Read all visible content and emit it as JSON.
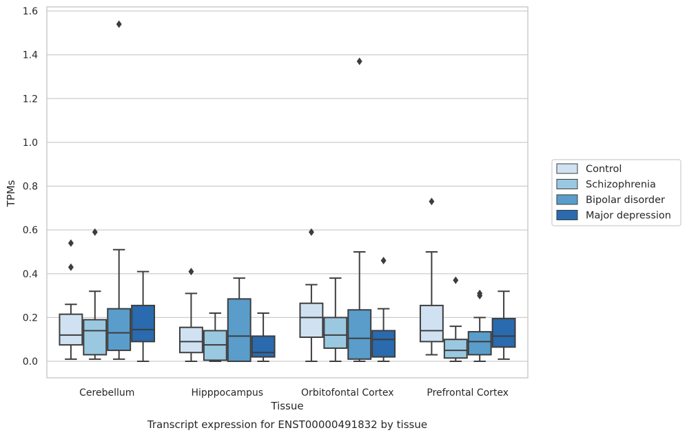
{
  "chart_data": {
    "type": "boxplot",
    "title": "Transcript expression for ENST00000491832 by tissue",
    "xlabel": "Tissue",
    "ylabel": "TPMs",
    "ylim": [
      -0.075,
      1.62
    ],
    "yticks": [
      0.0,
      0.2,
      0.4,
      0.6,
      0.8,
      1.0,
      1.2,
      1.4,
      1.6
    ],
    "ytick_labels": [
      "0.0",
      "0.2",
      "0.4",
      "0.6",
      "0.8",
      "1.0",
      "1.2",
      "1.4",
      "1.6"
    ],
    "grid": true,
    "legend_position": "right",
    "categories": [
      "Cerebellum",
      "Hipppocampus",
      "Orbitofontal Cortex",
      "Prefrontal Cortex"
    ],
    "series": [
      {
        "name": "Control",
        "color": "#d0e1f2",
        "boxes": [
          {
            "whislo": 0.01,
            "q1": 0.075,
            "med": 0.12,
            "q3": 0.215,
            "whishi": 0.26,
            "fliers": [
              0.43,
              0.54
            ]
          },
          {
            "whislo": 0.0,
            "q1": 0.04,
            "med": 0.09,
            "q3": 0.155,
            "whishi": 0.31,
            "fliers": [
              0.41
            ]
          },
          {
            "whislo": 0.0,
            "q1": 0.11,
            "med": 0.2,
            "q3": 0.265,
            "whishi": 0.35,
            "fliers": [
              0.59
            ]
          },
          {
            "whislo": 0.03,
            "q1": 0.09,
            "med": 0.14,
            "q3": 0.255,
            "whishi": 0.5,
            "fliers": [
              0.73
            ]
          }
        ]
      },
      {
        "name": "Schizophrenia",
        "color": "#9ac8e0",
        "boxes": [
          {
            "whislo": 0.01,
            "q1": 0.03,
            "med": 0.14,
            "q3": 0.19,
            "whishi": 0.32,
            "fliers": [
              0.59
            ]
          },
          {
            "whislo": 0.0,
            "q1": 0.005,
            "med": 0.075,
            "q3": 0.14,
            "whishi": 0.22,
            "fliers": []
          },
          {
            "whislo": 0.0,
            "q1": 0.06,
            "med": 0.12,
            "q3": 0.2,
            "whishi": 0.38,
            "fliers": []
          },
          {
            "whislo": 0.0,
            "q1": 0.015,
            "med": 0.05,
            "q3": 0.1,
            "whishi": 0.16,
            "fliers": [
              0.37
            ]
          }
        ]
      },
      {
        "name": "Bipolar disorder",
        "color": "#5a9dcb",
        "boxes": [
          {
            "whislo": 0.01,
            "q1": 0.05,
            "med": 0.13,
            "q3": 0.24,
            "whishi": 0.51,
            "fliers": [
              1.54
            ]
          },
          {
            "whislo": 0.0,
            "q1": 0.0,
            "med": 0.115,
            "q3": 0.285,
            "whishi": 0.38,
            "fliers": []
          },
          {
            "whislo": 0.0,
            "q1": 0.01,
            "med": 0.105,
            "q3": 0.235,
            "whishi": 0.5,
            "fliers": [
              1.37
            ]
          },
          {
            "whislo": 0.0,
            "q1": 0.03,
            "med": 0.09,
            "q3": 0.135,
            "whishi": 0.2,
            "fliers": [
              0.3,
              0.31
            ]
          }
        ]
      },
      {
        "name": "Major depression",
        "color": "#2a6aae",
        "boxes": [
          {
            "whislo": 0.0,
            "q1": 0.09,
            "med": 0.145,
            "q3": 0.255,
            "whishi": 0.41,
            "fliers": []
          },
          {
            "whislo": 0.0,
            "q1": 0.02,
            "med": 0.04,
            "q3": 0.115,
            "whishi": 0.22,
            "fliers": []
          },
          {
            "whislo": 0.0,
            "q1": 0.02,
            "med": 0.1,
            "q3": 0.14,
            "whishi": 0.24,
            "fliers": [
              0.46
            ]
          },
          {
            "whislo": 0.01,
            "q1": 0.065,
            "med": 0.115,
            "q3": 0.195,
            "whishi": 0.32,
            "fliers": []
          }
        ]
      }
    ]
  }
}
